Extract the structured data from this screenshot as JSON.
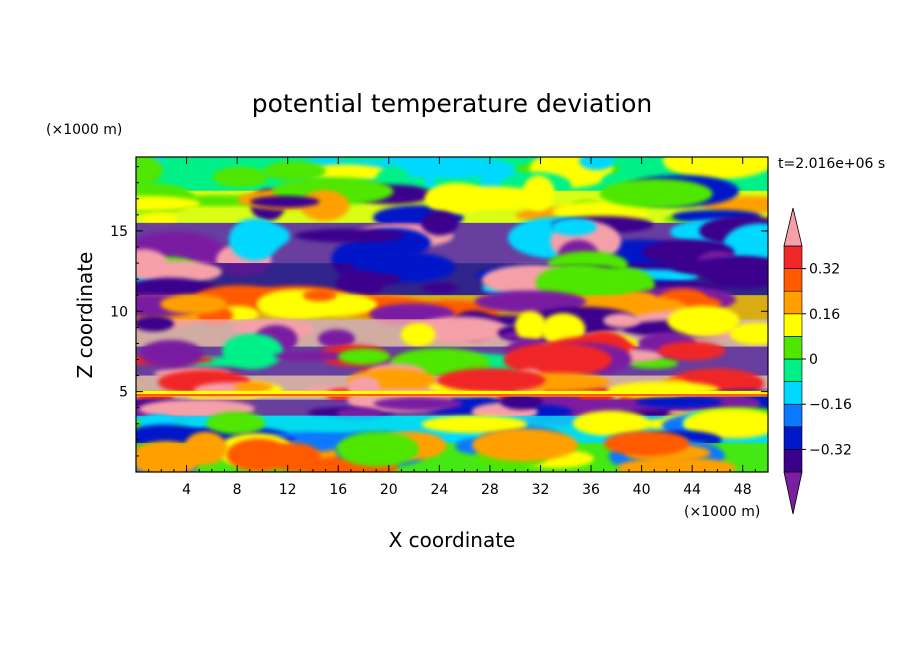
{
  "chart_data": {
    "type": "heatmap",
    "title": "potential temperature deviation",
    "xlabel": "X coordinate",
    "ylabel": "Z coordinate",
    "x_unit": "(×1000 m)",
    "y_unit": "(×1000 m)",
    "time_label": "t=2.016e+06 s",
    "xlim": [
      0,
      50
    ],
    "ylim": [
      0,
      19.6
    ],
    "x_ticks": [
      "4",
      "8",
      "12",
      "16",
      "20",
      "24",
      "28",
      "32",
      "36",
      "40",
      "44",
      "48"
    ],
    "x_tick_values": [
      4,
      8,
      12,
      16,
      20,
      24,
      28,
      32,
      36,
      40,
      44,
      48
    ],
    "y_ticks": [
      "5",
      "10",
      "15"
    ],
    "y_tick_values": [
      5,
      10,
      15
    ],
    "colorbar": {
      "levels": [
        -0.4,
        -0.32,
        -0.24,
        -0.16,
        -0.08,
        0,
        0.08,
        0.16,
        0.24,
        0.32,
        0.4
      ],
      "labels": [
        "0.32",
        "0.16",
        "0",
        "−0.16",
        "−0.32"
      ],
      "label_values": [
        0.32,
        0.16,
        0,
        -0.16,
        -0.32
      ],
      "colors": [
        "#7a1fa2",
        "#3a008c",
        "#0018c8",
        "#0a78ff",
        "#00d8ff",
        "#00f088",
        "#50e600",
        "#ffff00",
        "#ffa000",
        "#ff5a00",
        "#f02828",
        "#f5a0a8"
      ],
      "extend": "both"
    }
  }
}
